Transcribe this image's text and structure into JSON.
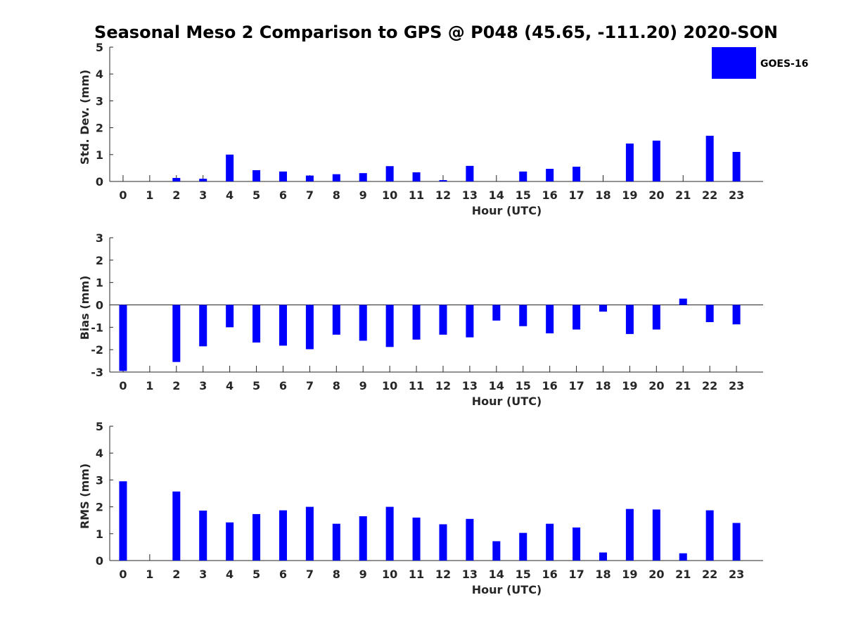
{
  "chart_data": {
    "type": "bar",
    "title": "Seasonal Meso 2 Comparison to GPS @ P048 (45.65, -111.20) 2020-SON",
    "legend": {
      "entries": [
        "GOES-16"
      ],
      "color": "#0000ff",
      "position": "top-right"
    },
    "bar_color": "#0000ff",
    "panels": [
      {
        "name": "std-dev",
        "xlabel": "Hour (UTC)",
        "ylabel": "Std. Dev. (mm)",
        "ylim": [
          0,
          5
        ],
        "yticks": [
          0,
          1,
          2,
          3,
          4,
          5
        ],
        "categories": [
          "0",
          "1",
          "2",
          "3",
          "4",
          "5",
          "6",
          "7",
          "8",
          "9",
          "10",
          "11",
          "12",
          "13",
          "14",
          "15",
          "16",
          "17",
          "18",
          "19",
          "20",
          "21",
          "22",
          "23"
        ],
        "values": [
          0,
          0,
          0.13,
          0.1,
          1.0,
          0.42,
          0.37,
          0.22,
          0.27,
          0.31,
          0.57,
          0.34,
          0.05,
          0.58,
          0,
          0.37,
          0.47,
          0.55,
          0,
          1.41,
          1.52,
          0,
          1.7,
          1.1
        ]
      },
      {
        "name": "bias",
        "xlabel": "Hour (UTC)",
        "ylabel": "Bias (mm)",
        "ylim": [
          -3,
          3
        ],
        "yticks": [
          -3,
          -2,
          -1,
          0,
          1,
          2,
          3
        ],
        "zero_line": true,
        "categories": [
          "0",
          "1",
          "2",
          "3",
          "4",
          "5",
          "6",
          "7",
          "8",
          "9",
          "10",
          "11",
          "12",
          "13",
          "14",
          "15",
          "16",
          "17",
          "18",
          "19",
          "20",
          "21",
          "22",
          "23"
        ],
        "values": [
          -2.95,
          0,
          -2.55,
          -1.85,
          -1.0,
          -1.68,
          -1.82,
          -1.98,
          -1.33,
          -1.6,
          -1.88,
          -1.55,
          -1.33,
          -1.45,
          -0.7,
          -0.95,
          -1.27,
          -1.1,
          -0.3,
          -1.3,
          -1.1,
          0.28,
          -0.77,
          -0.87
        ]
      },
      {
        "name": "rms",
        "xlabel": "Hour (UTC)",
        "ylabel": "RMS (mm)",
        "ylim": [
          0,
          5
        ],
        "yticks": [
          0,
          1,
          2,
          3,
          4,
          5
        ],
        "categories": [
          "0",
          "1",
          "2",
          "3",
          "4",
          "5",
          "6",
          "7",
          "8",
          "9",
          "10",
          "11",
          "12",
          "13",
          "14",
          "15",
          "16",
          "17",
          "18",
          "19",
          "20",
          "21",
          "22",
          "23"
        ],
        "values": [
          2.95,
          0,
          2.57,
          1.86,
          1.42,
          1.73,
          1.87,
          2.0,
          1.37,
          1.65,
          2.0,
          1.6,
          1.35,
          1.55,
          0.72,
          1.03,
          1.37,
          1.23,
          0.3,
          1.92,
          1.9,
          0.27,
          1.87,
          1.4
        ]
      }
    ]
  }
}
